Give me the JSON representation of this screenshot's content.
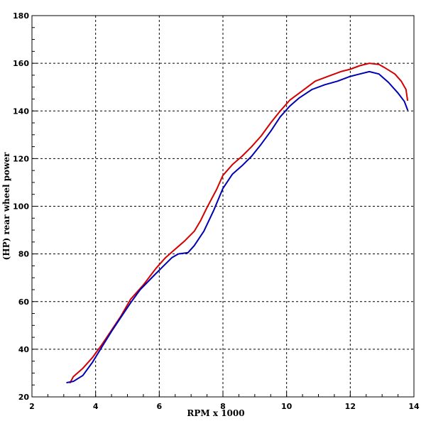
{
  "chart_data": {
    "type": "line",
    "title": "",
    "xlabel": "RPM x 1000",
    "ylabel": "(HP) rear wheel power",
    "xlim": [
      2,
      14
    ],
    "ylim": [
      20,
      180
    ],
    "xticks": [
      2,
      4,
      6,
      8,
      10,
      12,
      14
    ],
    "xtick_labels": [
      "2",
      "4",
      "6",
      "8",
      "10",
      "12",
      "14"
    ],
    "yticks": [
      20,
      40,
      60,
      80,
      100,
      120,
      140,
      160,
      180
    ],
    "ytick_labels": [
      "20",
      "40",
      "60",
      "80",
      "100",
      "120",
      "140",
      "160",
      "180"
    ],
    "grid": true,
    "legend": "none",
    "series": [
      {
        "color": "#d40000",
        "points": [
          [
            3.2,
            26
          ],
          [
            3.3,
            28.5
          ],
          [
            3.6,
            32
          ],
          [
            3.9,
            36.5
          ],
          [
            4.2,
            42
          ],
          [
            4.5,
            48
          ],
          [
            4.8,
            54
          ],
          [
            5.1,
            61
          ],
          [
            5.5,
            67
          ],
          [
            5.9,
            74
          ],
          [
            6.2,
            78.5
          ],
          [
            6.5,
            82
          ],
          [
            6.8,
            85.5
          ],
          [
            7.1,
            89.5
          ],
          [
            7.3,
            94
          ],
          [
            7.5,
            99.5
          ],
          [
            7.8,
            107
          ],
          [
            8.0,
            113
          ],
          [
            8.3,
            117.5
          ],
          [
            8.6,
            121
          ],
          [
            8.9,
            125
          ],
          [
            9.2,
            129.5
          ],
          [
            9.5,
            135
          ],
          [
            9.8,
            140
          ],
          [
            10.1,
            144.5
          ],
          [
            10.5,
            148.5
          ],
          [
            10.9,
            152.5
          ],
          [
            11.3,
            154.5
          ],
          [
            11.7,
            156.5
          ],
          [
            12.0,
            157.5
          ],
          [
            12.3,
            159
          ],
          [
            12.6,
            160
          ],
          [
            12.9,
            159.5
          ],
          [
            13.1,
            158
          ],
          [
            13.4,
            155.5
          ],
          [
            13.6,
            152.5
          ],
          [
            13.75,
            149
          ],
          [
            13.8,
            144.5
          ]
        ]
      },
      {
        "color": "#0000b4",
        "points": [
          [
            3.1,
            26
          ],
          [
            3.3,
            26.5
          ],
          [
            3.6,
            29
          ],
          [
            3.9,
            34.5
          ],
          [
            4.2,
            41
          ],
          [
            4.5,
            47.5
          ],
          [
            4.8,
            53.5
          ],
          [
            5.1,
            59.5
          ],
          [
            5.4,
            65
          ],
          [
            5.8,
            70.5
          ],
          [
            6.1,
            74.5
          ],
          [
            6.4,
            78.5
          ],
          [
            6.6,
            80
          ],
          [
            6.9,
            80.5
          ],
          [
            7.1,
            83.5
          ],
          [
            7.4,
            89.5
          ],
          [
            7.7,
            98
          ],
          [
            8.0,
            107.5
          ],
          [
            8.3,
            113.5
          ],
          [
            8.6,
            117
          ],
          [
            8.9,
            121
          ],
          [
            9.2,
            126
          ],
          [
            9.5,
            131.5
          ],
          [
            9.8,
            137.5
          ],
          [
            10.1,
            142
          ],
          [
            10.4,
            145.5
          ],
          [
            10.8,
            149
          ],
          [
            11.2,
            151
          ],
          [
            11.6,
            152.5
          ],
          [
            12.0,
            154.5
          ],
          [
            12.3,
            155.5
          ],
          [
            12.6,
            156.5
          ],
          [
            12.9,
            155.5
          ],
          [
            13.2,
            152
          ],
          [
            13.5,
            147.5
          ],
          [
            13.7,
            144
          ],
          [
            13.8,
            140.5
          ]
        ]
      }
    ]
  }
}
